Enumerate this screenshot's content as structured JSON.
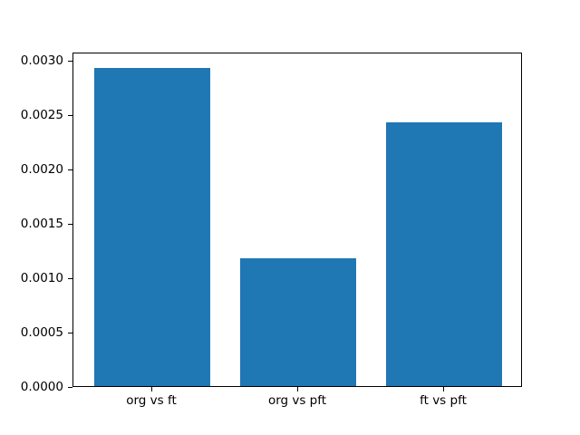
{
  "figure": {
    "background_color": "#ffffff"
  },
  "chart_data": {
    "type": "bar",
    "title": "",
    "xlabel": "",
    "ylabel": "",
    "categories": [
      "org vs ft",
      "org vs pft",
      "ft vs pft"
    ],
    "values": [
      0.002931,
      0.001176,
      0.002425
    ],
    "bar_color": "#1f77b4",
    "bar_width_fraction": 0.8,
    "xlim": [
      -0.54,
      2.54
    ],
    "ylim": [
      0,
      0.003077
    ],
    "yticks": [
      0.0,
      0.0005,
      0.001,
      0.0015,
      0.002,
      0.0025,
      0.003
    ],
    "ytick_labels": [
      "0.0000",
      "0.0005",
      "0.0010",
      "0.0015",
      "0.0020",
      "0.0025",
      "0.0030"
    ],
    "grid": false,
    "legend": null,
    "axis_color": "#000000",
    "tick_label_color": "#000000"
  }
}
